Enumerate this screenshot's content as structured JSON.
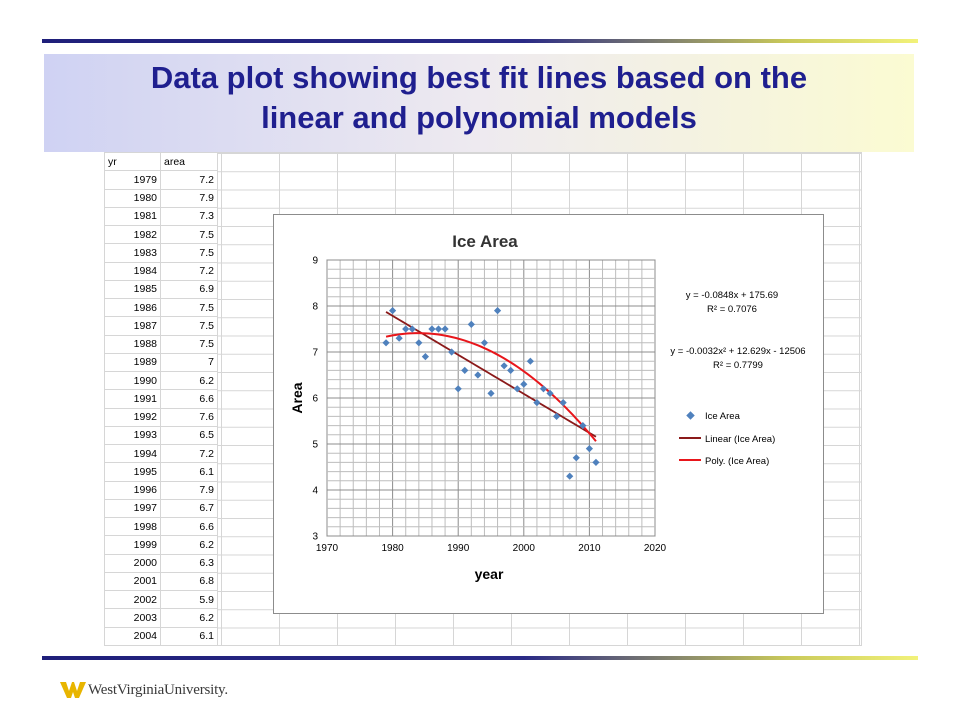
{
  "slide": {
    "title_line1": "Data plot showing best fit lines based on the",
    "title_line2": "linear and polynomial models",
    "logo_text": "WestVirginiaUniversity."
  },
  "colors": {
    "title": "#1f1f8f",
    "marker": "#4f81bd",
    "linear_line": "#8b1a1a",
    "poly_line": "#e8161b"
  },
  "sheet": {
    "headers": [
      "yr",
      "area"
    ],
    "rows": [
      [
        "1979",
        "7.2"
      ],
      [
        "1980",
        "7.9"
      ],
      [
        "1981",
        "7.3"
      ],
      [
        "1982",
        "7.5"
      ],
      [
        "1983",
        "7.5"
      ],
      [
        "1984",
        "7.2"
      ],
      [
        "1985",
        "6.9"
      ],
      [
        "1986",
        "7.5"
      ],
      [
        "1987",
        "7.5"
      ],
      [
        "1988",
        "7.5"
      ],
      [
        "1989",
        "7"
      ],
      [
        "1990",
        "6.2"
      ],
      [
        "1991",
        "6.6"
      ],
      [
        "1992",
        "7.6"
      ],
      [
        "1993",
        "6.5"
      ],
      [
        "1994",
        "7.2"
      ],
      [
        "1995",
        "6.1"
      ],
      [
        "1996",
        "7.9"
      ],
      [
        "1997",
        "6.7"
      ],
      [
        "1998",
        "6.6"
      ],
      [
        "1999",
        "6.2"
      ],
      [
        "2000",
        "6.3"
      ],
      [
        "2001",
        "6.8"
      ],
      [
        "2002",
        "5.9"
      ],
      [
        "2003",
        "6.2"
      ],
      [
        "2004",
        "6.1"
      ]
    ]
  },
  "chart_data": {
    "type": "scatter",
    "title": "Ice Area",
    "xlabel": "year",
    "ylabel": "Area",
    "xlim": [
      1970,
      2020
    ],
    "ylim": [
      3,
      9
    ],
    "x_ticks": [
      "1970",
      "1980",
      "1990",
      "2000",
      "2010",
      "2020"
    ],
    "y_ticks": [
      "3",
      "4",
      "5",
      "6",
      "7",
      "8",
      "9"
    ],
    "grid": true,
    "legend_position": "right",
    "series": [
      {
        "name": "Ice Area",
        "points": [
          [
            1979,
            7.2
          ],
          [
            1980,
            7.9
          ],
          [
            1981,
            7.3
          ],
          [
            1982,
            7.5
          ],
          [
            1983,
            7.5
          ],
          [
            1984,
            7.2
          ],
          [
            1985,
            6.9
          ],
          [
            1986,
            7.5
          ],
          [
            1987,
            7.5
          ],
          [
            1988,
            7.5
          ],
          [
            1989,
            7.0
          ],
          [
            1990,
            6.2
          ],
          [
            1991,
            6.6
          ],
          [
            1992,
            7.6
          ],
          [
            1993,
            6.5
          ],
          [
            1994,
            7.2
          ],
          [
            1995,
            6.1
          ],
          [
            1996,
            7.9
          ],
          [
            1997,
            6.7
          ],
          [
            1998,
            6.6
          ],
          [
            1999,
            6.2
          ],
          [
            2000,
            6.3
          ],
          [
            2001,
            6.8
          ],
          [
            2002,
            5.9
          ],
          [
            2003,
            6.2
          ],
          [
            2004,
            6.1
          ],
          [
            2005,
            5.6
          ],
          [
            2006,
            5.9
          ],
          [
            2007,
            4.3
          ],
          [
            2008,
            4.7
          ],
          [
            2009,
            5.4
          ],
          [
            2010,
            4.9
          ],
          [
            2011,
            4.6
          ]
        ]
      }
    ],
    "trendlines": [
      {
        "name": "Linear (Ice Area)",
        "kind": "linear",
        "coefficients": [
          -0.0848,
          175.69
        ],
        "x_range": [
          1979,
          2011
        ],
        "equation": "y = -0.0848x + 175.69",
        "r2": "R² = 0.7076"
      },
      {
        "name": "Poly. (Ice Area)",
        "kind": "poly2",
        "vertex": [
          1983.9,
          7.41
        ],
        "a": -0.0032,
        "x_range": [
          1979,
          2011
        ],
        "equation": "y = -0.0032x² + 12.629x - 12506",
        "r2": "R² = 0.7799"
      }
    ]
  }
}
